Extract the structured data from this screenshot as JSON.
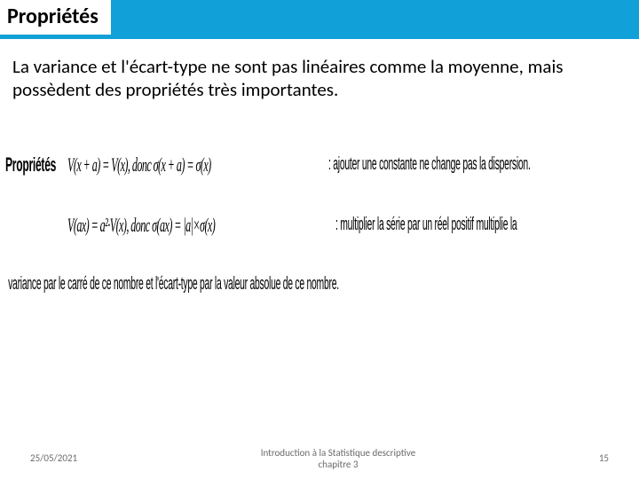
{
  "header": {
    "title": "Propriétés"
  },
  "intro": "La variance et l'écart-type ne sont pas linéaires comme la moyenne, mais possèdent des propriétés très importantes.",
  "properties": {
    "label": "Propriétés",
    "row1": {
      "formula": "V(x + a) = V(x), donc σ(x + a) = σ(x)",
      "desc": " : ajouter une constante ne change pas la dispersion."
    },
    "row2": {
      "formula": "V(ax) = a²·V(x), donc σ(ax) = |a|×σ(x)",
      "desc": " : multiplier la série par un réel positif multiplie la"
    },
    "row3": "variance par le carré de ce nombre et l'écart-type par la valeur absolue de ce nombre."
  },
  "footer": {
    "date": "25/05/2021",
    "title_line1": "Introduction à la Statistique descriptive",
    "title_line2": "chapitre 3",
    "page": "15"
  },
  "colors": {
    "accent": "#11a0d8",
    "text": "#000000",
    "footer_text": "#6b6b6b",
    "background": "#ffffff"
  }
}
